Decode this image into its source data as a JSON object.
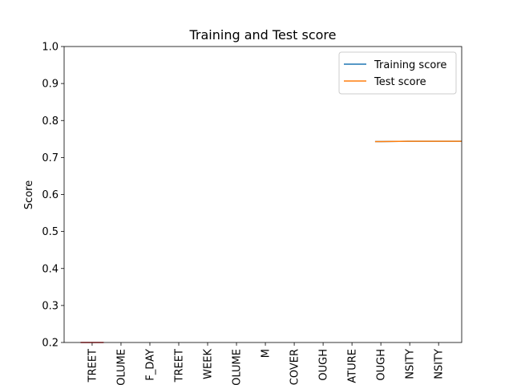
{
  "chart_data": {
    "type": "line",
    "title": "Training and Test score",
    "y_label": "Score",
    "categories": [
      "TREET",
      "OLUME",
      "F_DAY",
      "TREET",
      "WEEK",
      "OLUME",
      "M",
      "COVER",
      "OUGH",
      "ATURE",
      "OUGH",
      "NSITY",
      "NSITY"
    ],
    "xlim": [
      -0.97,
      12.8
    ],
    "ylim": [
      0.2,
      1.0
    ],
    "yticks": [
      0.2,
      0.3,
      0.4,
      0.5,
      0.6,
      0.7,
      0.8,
      0.9,
      {
        "value": 1.0,
        "label": "1.0"
      }
    ],
    "legend": "upper right",
    "series": [
      {
        "name": "Training score",
        "color": "#1f77b4",
        "x": [
          9.8,
          10,
          11,
          12,
          12.8
        ],
        "values": [
          0.743,
          0.743,
          0.744,
          0.744,
          0.744
        ]
      },
      {
        "name": "Test score",
        "color": "#ff7f0e",
        "x": [
          9.8,
          10,
          11,
          12,
          12.8
        ],
        "values": [
          0.743,
          0.743,
          0.744,
          0.744,
          0.744
        ]
      },
      {
        "color": "#d62728",
        "x": [
          -0.4,
          0.4
        ],
        "values": [
          0.2,
          0.2
        ]
      }
    ]
  }
}
